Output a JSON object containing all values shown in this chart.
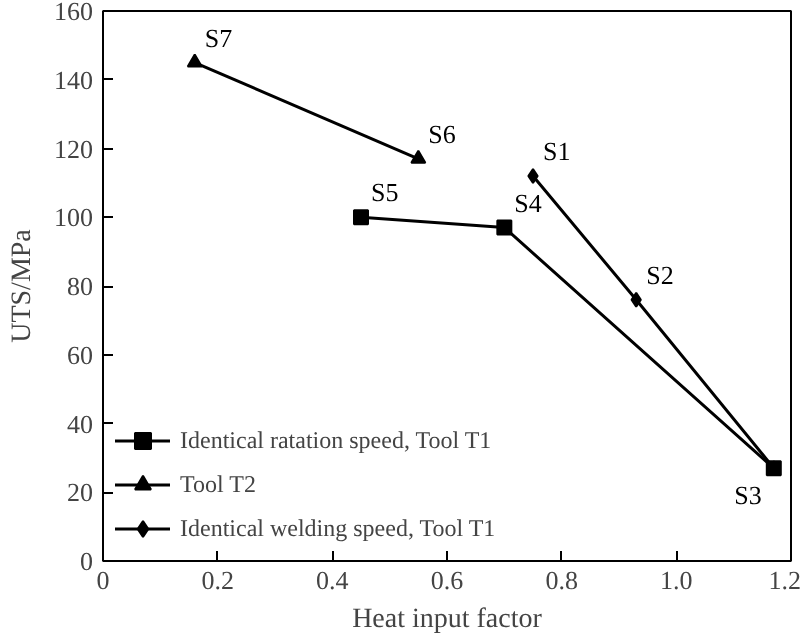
{
  "chart_data": {
    "type": "line",
    "xlabel": "Heat input factor",
    "ylabel": "UTS/MPa",
    "xlim": [
      0,
      1.2
    ],
    "xticks": [
      0,
      0.2,
      0.4,
      0.6,
      0.8,
      {
        "value": 1,
        "label": "1.0"
      },
      1.2
    ],
    "ylim": [
      0,
      160
    ],
    "yticks": [
      0,
      20,
      40,
      60,
      80,
      100,
      120,
      140,
      160
    ],
    "legend": "bottom left",
    "grid": false,
    "series": [
      {
        "name": "Identical ratation speed, Tool T1",
        "color": "#000000",
        "marker": "square",
        "x": [
          0.45,
          0.7,
          1.17
        ],
        "values": [
          100,
          97,
          27
        ]
      },
      {
        "name": "Tool T2",
        "color": "#000000",
        "marker": "triangle",
        "x": [
          0.16,
          0.55
        ],
        "values": [
          145,
          117
        ]
      },
      {
        "name": "Identical welding speed, Tool T1",
        "color": "#000000",
        "marker": "diamond",
        "x": [
          0.75,
          0.93,
          1.17
        ],
        "values": [
          112,
          76,
          27
        ]
      }
    ],
    "annotations": [
      {
        "text": "S1",
        "x": 0.75,
        "y": 112
      },
      {
        "text": "S2",
        "x": 0.93,
        "y": 76
      },
      {
        "text": "S3",
        "x": 1.17,
        "y": 27
      },
      {
        "text": "S4",
        "x": 0.7,
        "y": 97
      },
      {
        "text": "S5",
        "x": 0.45,
        "y": 100
      },
      {
        "text": "S6",
        "x": 0.55,
        "y": 117
      },
      {
        "text": "S7",
        "x": 0.16,
        "y": 145
      }
    ]
  }
}
